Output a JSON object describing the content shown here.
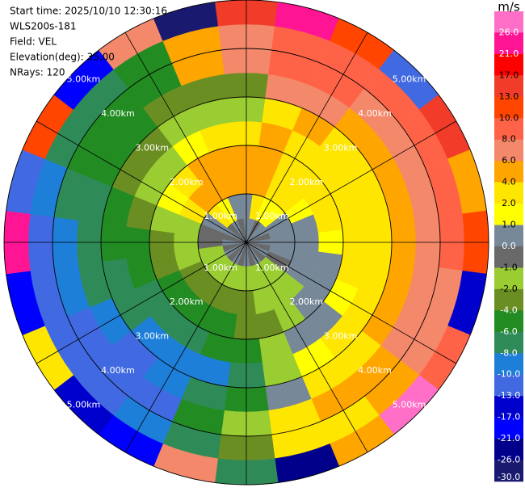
{
  "chart_data": {
    "type": "ppi",
    "info_lines": [
      "Start time: 2025/10/10 12:30:16",
      "WLS200s-181",
      "Field: VEL",
      "Elevation(deg): 35.00",
      "NRays: 120"
    ],
    "azimuths": [
      0,
      15,
      30,
      45,
      60,
      75,
      90,
      105,
      120,
      135,
      150,
      165,
      180,
      195,
      210,
      225,
      240,
      255,
      270,
      285,
      300,
      315,
      330,
      345
    ],
    "ranges": [
      0.25,
      0.75,
      1.25,
      1.75,
      2.25,
      2.75,
      3.25,
      3.75,
      4.25,
      4.75
    ],
    "rlim": [
      0,
      5
    ],
    "range_rings": [
      {
        "value": 1,
        "label": "1.00km"
      },
      {
        "value": 2,
        "label": "2.00km"
      },
      {
        "value": 3,
        "label": "3.00km"
      },
      {
        "value": 4,
        "label": "4.00km"
      },
      {
        "value": 5,
        "label": "5.00km"
      }
    ],
    "values": [
      [
        0.5,
        0.5,
        5,
        5,
        3,
        -1.5,
        -3,
        7,
        7,
        15
      ],
      [
        0.5,
        3,
        5,
        5,
        5,
        3,
        7,
        9,
        9,
        22
      ],
      [
        -0.5,
        1.5,
        3,
        3,
        3,
        5,
        7,
        9,
        9,
        12
      ],
      [
        0.5,
        1.5,
        3,
        3,
        3,
        3,
        5,
        7,
        9,
        -11
      ],
      [
        0.5,
        0.5,
        1.5,
        3,
        3,
        3,
        5,
        7,
        9,
        15
      ],
      [
        -0.5,
        0.5,
        0.5,
        3,
        3,
        3,
        5,
        7,
        9,
        5
      ],
      [
        0.5,
        0.5,
        0.5,
        1.5,
        3,
        3,
        5,
        7,
        9,
        11
      ],
      [
        -0.5,
        0.5,
        0.5,
        0.5,
        3,
        3,
        5,
        7,
        7,
        -15
      ],
      [
        0.5,
        -0.5,
        0.5,
        0.5,
        1.5,
        3,
        5,
        7,
        7,
        9
      ],
      [
        -0.5,
        -1.5,
        -1.5,
        0.5,
        0.5,
        3,
        3,
        5,
        5,
        28
      ],
      [
        0.5,
        -1.5,
        -1.5,
        -1.5,
        0.5,
        1.5,
        3,
        5,
        3,
        5
      ],
      [
        -0.5,
        -1.5,
        -1.5,
        -3,
        -1.5,
        -1.5,
        0.5,
        3,
        3,
        -23
      ],
      [
        0.5,
        -1.5,
        -3,
        -3,
        -5,
        -7,
        -5,
        -1.5,
        -3,
        -7
      ],
      [
        -0.5,
        -1.5,
        -3,
        -5,
        -5,
        -9,
        -7,
        -5,
        -7,
        7
      ],
      [
        0.5,
        -1.5,
        -3,
        -5,
        -7,
        -9,
        -9,
        -11,
        -9,
        -19
      ],
      [
        -0.5,
        -1.5,
        -3,
        -5,
        -7,
        -9,
        -11,
        -11,
        -11,
        -15
      ],
      [
        0.5,
        -1.5,
        -3,
        -5,
        -7,
        -7,
        -9,
        -11,
        -11,
        3
      ],
      [
        -0.5,
        -1.5,
        -1.5,
        -3,
        -5,
        -7,
        -7,
        -9,
        -11,
        -19
      ],
      [
        0.5,
        -0.5,
        -1.5,
        -3,
        -5,
        -5,
        -7,
        -9,
        -11,
        24
      ],
      [
        -0.5,
        -0.5,
        -1.5,
        -1.5,
        -3,
        -5,
        -7,
        -7,
        -9,
        -11
      ],
      [
        0.5,
        0.5,
        3,
        1.5,
        -1.5,
        -3,
        -5,
        -5,
        -7,
        12
      ],
      [
        -0.5,
        3,
        5,
        3,
        -1.5,
        -3,
        -5,
        -5,
        -7,
        -17
      ],
      [
        0.5,
        1.5,
        5,
        5,
        1.5,
        -1.5,
        -3,
        -5,
        -5,
        7
      ],
      [
        -0.5,
        0.5,
        5,
        5,
        3,
        -1.5,
        -3,
        5,
        5,
        -28
      ]
    ],
    "colorbar": {
      "title": "m/s",
      "clim": [
        -30,
        30
      ],
      "levels": [
        {
          "value": 26,
          "label": "26.0"
        },
        {
          "value": 21,
          "label": "21.0"
        },
        {
          "value": 17,
          "label": "17.0"
        },
        {
          "value": 13,
          "label": "13.0"
        },
        {
          "value": 10,
          "label": "10.0"
        },
        {
          "value": 8,
          "label": "8.0"
        },
        {
          "value": 6,
          "label": "6.0"
        },
        {
          "value": 4,
          "label": "4.0"
        },
        {
          "value": 2,
          "label": "2.0"
        },
        {
          "value": 1,
          "label": "1.0"
        },
        {
          "value": 0,
          "label": "0.0"
        },
        {
          "value": -1,
          "label": "-1.0"
        },
        {
          "value": -2,
          "label": "-2.0"
        },
        {
          "value": -4,
          "label": "-4.0"
        },
        {
          "value": -6,
          "label": "-6.0"
        },
        {
          "value": -8,
          "label": "-8.0"
        },
        {
          "value": -10,
          "label": "-10.0"
        },
        {
          "value": -13,
          "label": "-13.0"
        },
        {
          "value": -17,
          "label": "-17.0"
        },
        {
          "value": -21,
          "label": "-21.0"
        },
        {
          "value": -26,
          "label": "-26.0"
        },
        {
          "value": -30,
          "label": "-30.0"
        }
      ],
      "colors": [
        "#ff6ec7",
        "#ff1493",
        "#ff0000",
        "#f03c28",
        "#ff4500",
        "#ff6347",
        "#f4886a",
        "#ffa500",
        "#ffe600",
        "#ffff00",
        "#778899",
        "#696969",
        "#9acd32",
        "#6b8e23",
        "#228b22",
        "#2e8b57",
        "#1e7fd8",
        "#4169e1",
        "#0000cd",
        "#0000ff",
        "#00008b",
        "#191970"
      ]
    }
  }
}
